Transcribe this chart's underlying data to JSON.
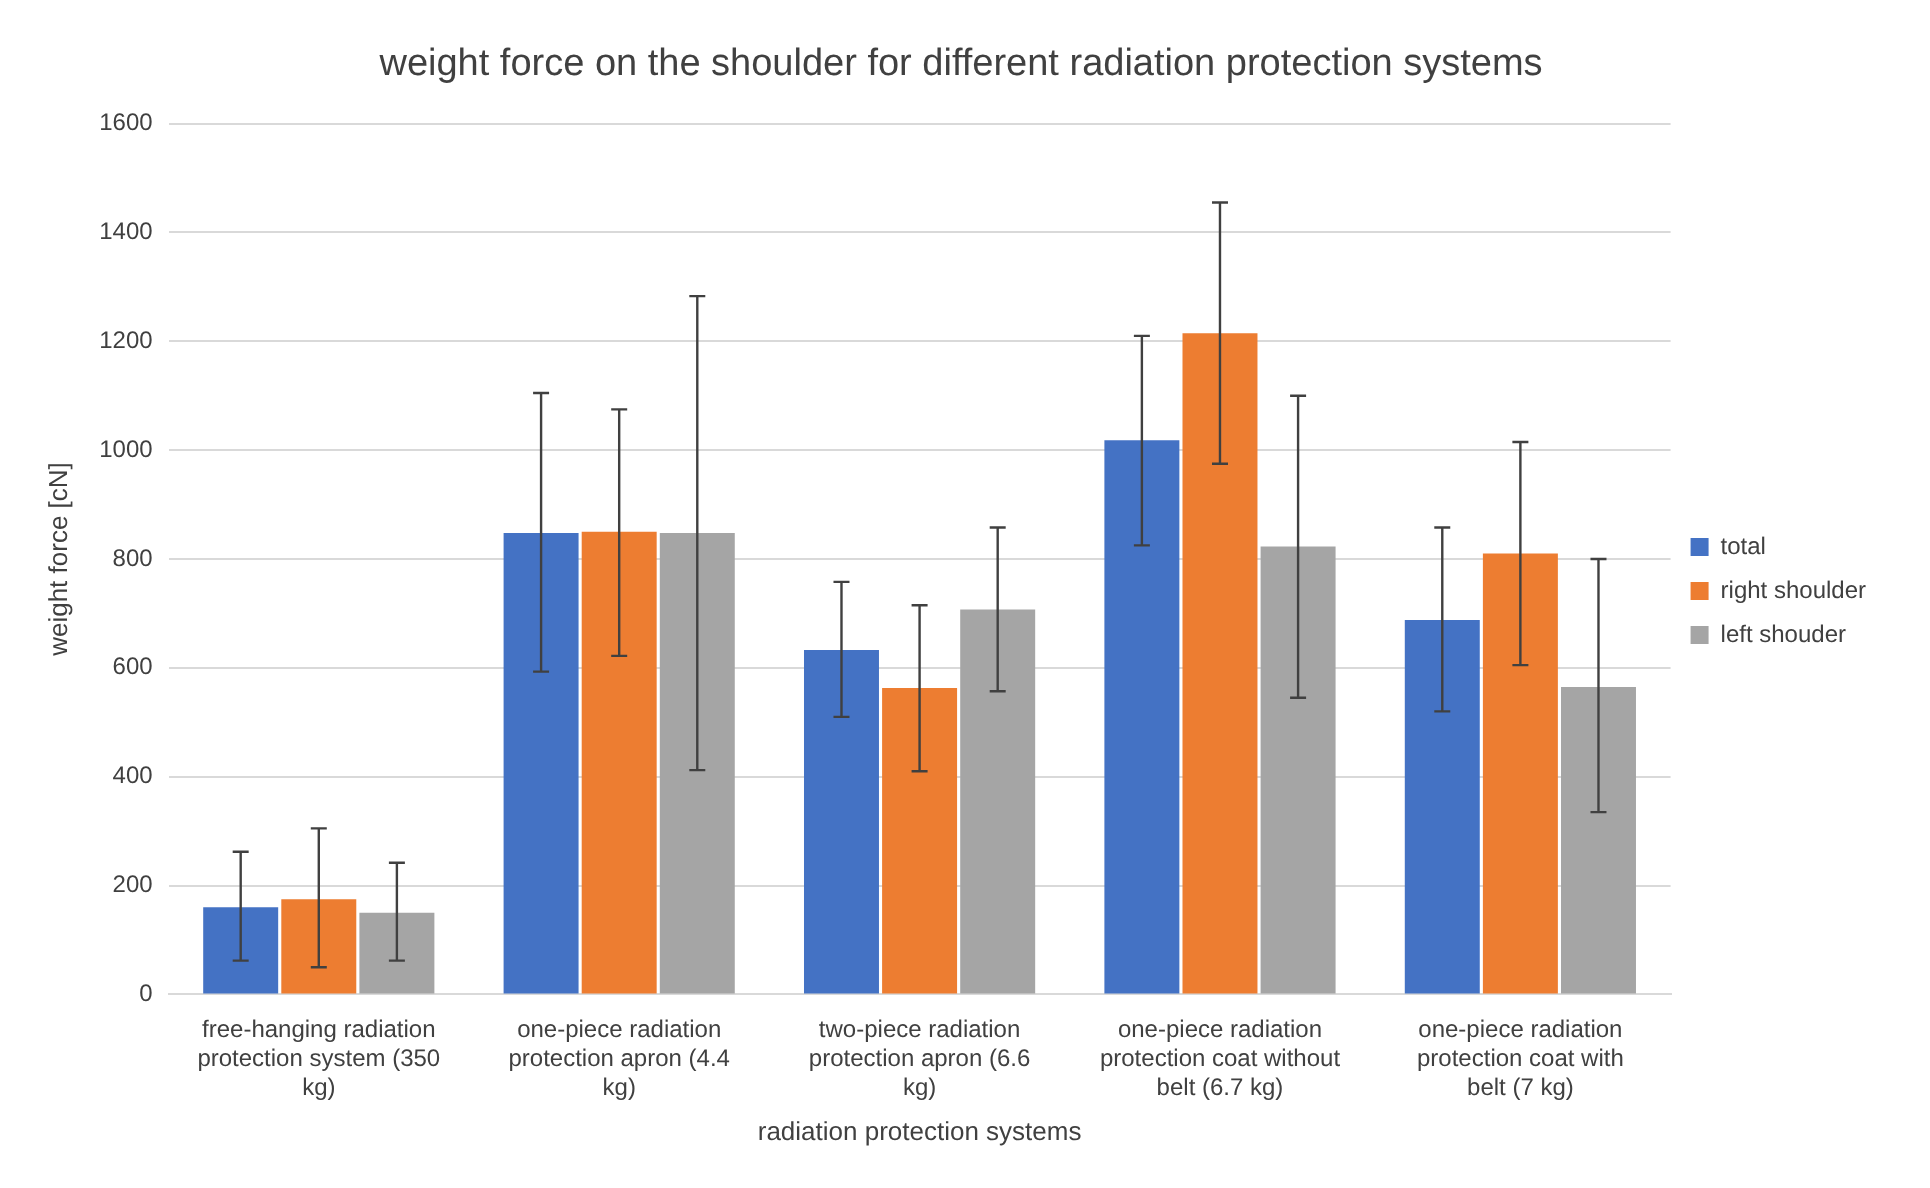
{
  "chart_data": {
    "type": "bar",
    "title": "weight force on the shoulder for different radiation protection systems",
    "xlabel": "radiation protection systems",
    "ylabel": "weight force [cN]",
    "categories": [
      "free-hanging radiation protection system (350 kg)",
      "one-piece radiation protection apron (4.4 kg)",
      "two-piece radiation protection apron (6.6 kg)",
      "one-piece radiation protection coat without belt (6.7 kg)",
      "one-piece radiation protection coat with belt (7 kg)"
    ],
    "series": [
      {
        "name": "total",
        "color": "#4472c4",
        "values": [
          160,
          848,
          633,
          1018,
          688
        ],
        "errors": [
          [
            62,
            262
          ],
          [
            593,
            1105
          ],
          [
            510,
            758
          ],
          [
            825,
            1210
          ],
          [
            520,
            858
          ]
        ]
      },
      {
        "name": "right shoulder",
        "color": "#ed7d31",
        "values": [
          175,
          850,
          563,
          1215,
          810
        ],
        "errors": [
          [
            50,
            305
          ],
          [
            622,
            1075
          ],
          [
            410,
            715
          ],
          [
            975,
            1455
          ],
          [
            605,
            1015
          ]
        ]
      },
      {
        "name": "left shouder",
        "color": "#a5a5a5",
        "values": [
          150,
          848,
          707,
          823,
          565
        ],
        "errors": [
          [
            62,
            242
          ],
          [
            412,
            1283
          ],
          [
            557,
            858
          ],
          [
            545,
            1100
          ],
          [
            335,
            800
          ]
        ]
      }
    ],
    "ylim": [
      0,
      1600
    ],
    "yticks": [
      0,
      200,
      400,
      600,
      800,
      1000,
      1200,
      1400,
      1600
    ],
    "grid": "y",
    "legend": "right"
  }
}
